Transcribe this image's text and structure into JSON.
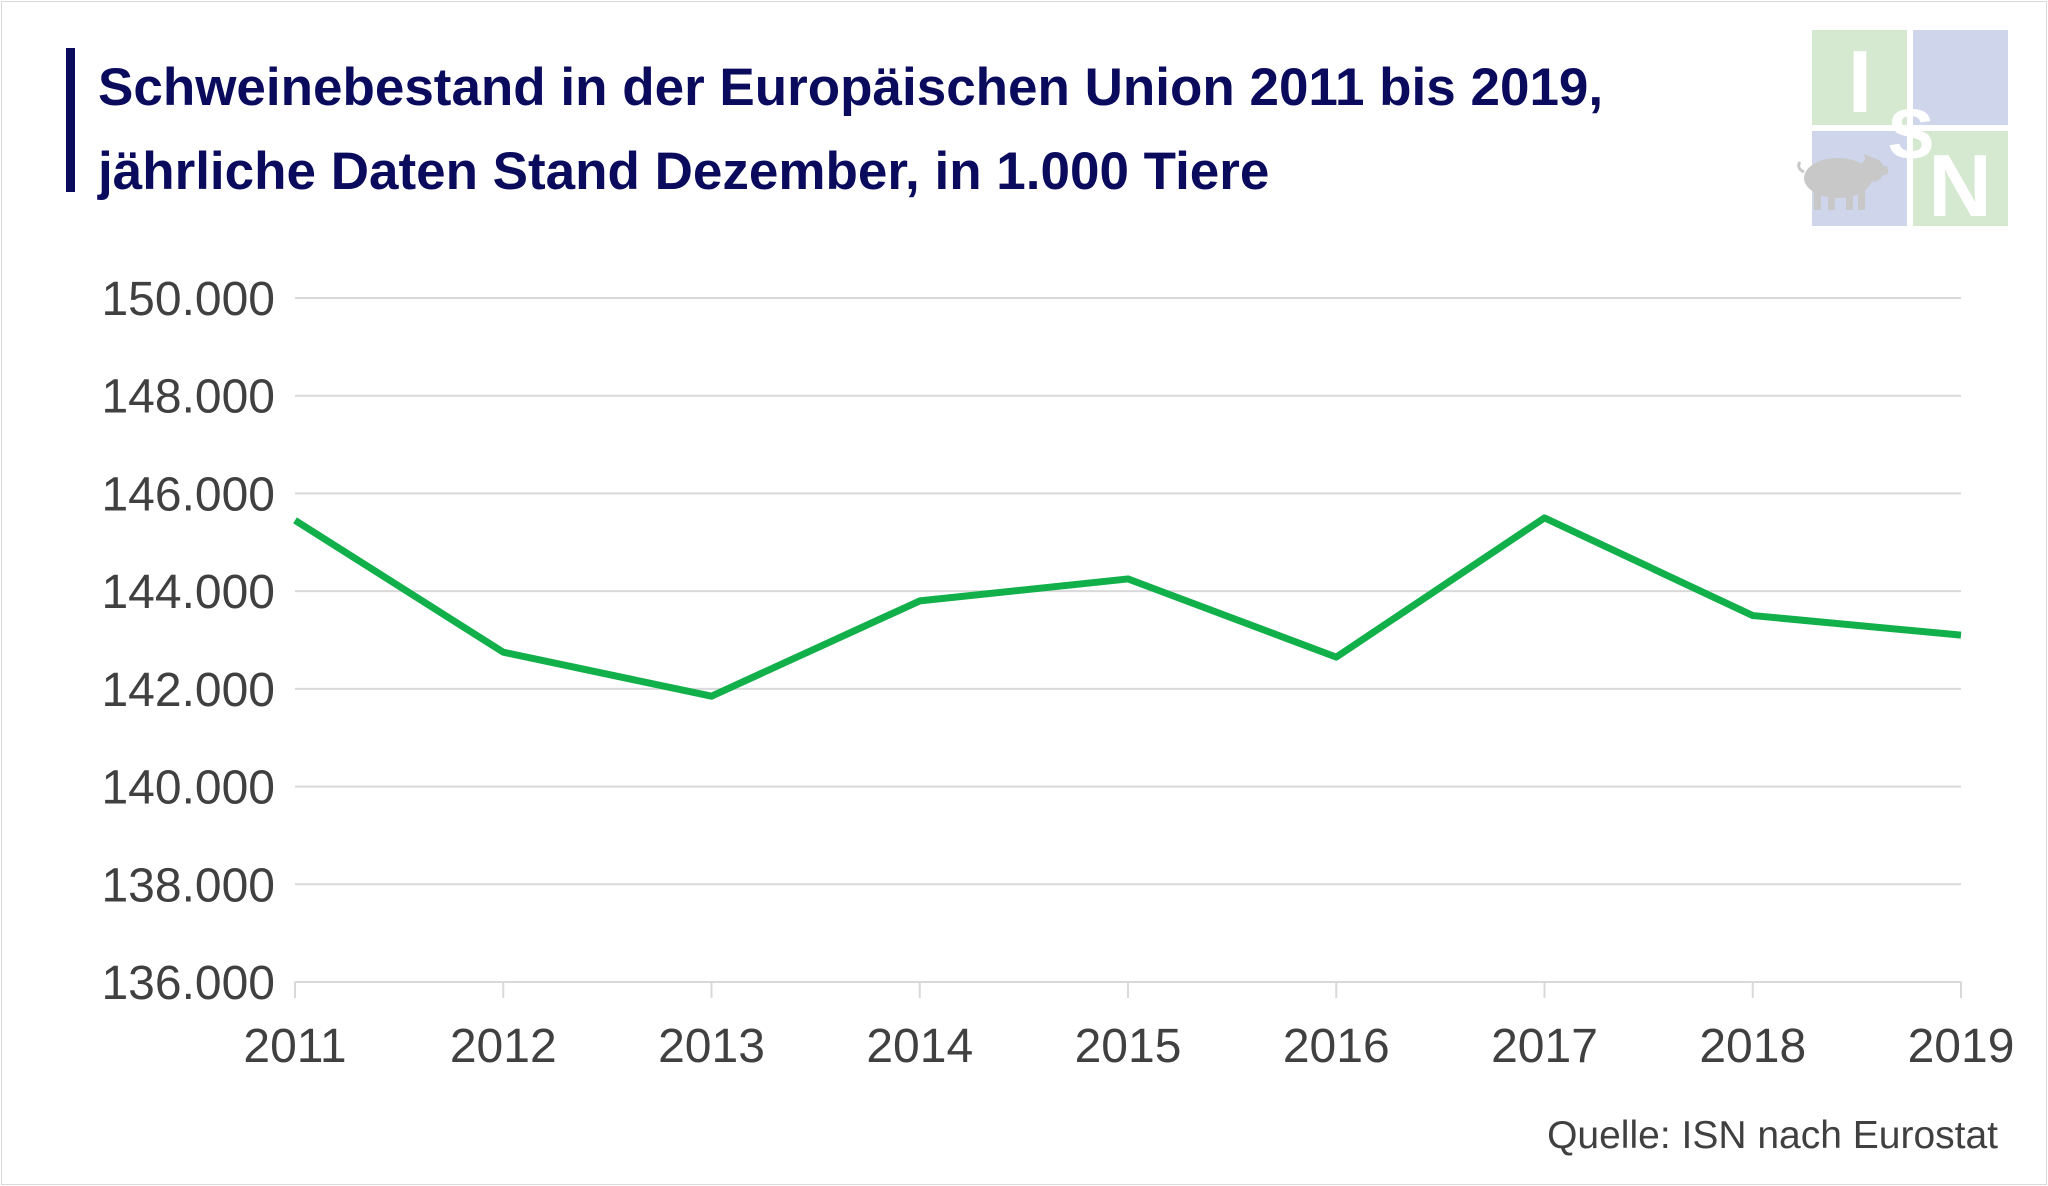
{
  "title": "Schweinebestand in der Europäischen Union 2011 bis 2019, jährliche Daten Stand Dezember, in 1.000 Tiere",
  "source": "Quelle: ISN nach Eurostat",
  "logo": {
    "letters": [
      "I",
      "S",
      "N"
    ],
    "icon": "pig-icon",
    "colors": {
      "green_tile": "#d5e9d1",
      "blue_tile": "#cfd6ec",
      "letter": "#ffffff",
      "pig": "#c8c8c8"
    }
  },
  "colors": {
    "title": "#0b0b5e",
    "line": "#12b04a",
    "grid": "#d9d9d9",
    "axis_text": "#404040"
  },
  "chart_data": {
    "type": "line",
    "title": "Schweinebestand in der Europäischen Union 2011 bis 2019, jährliche Daten Stand Dezember, in 1.000 Tiere",
    "xlabel": "",
    "ylabel": "",
    "categories": [
      "2011",
      "2012",
      "2013",
      "2014",
      "2015",
      "2016",
      "2017",
      "2018",
      "2019"
    ],
    "series": [
      {
        "values": [
          145450,
          142750,
          141850,
          143800,
          144250,
          142650,
          145500,
          143500,
          143100
        ]
      }
    ],
    "ylim": [
      136000,
      150000
    ],
    "yticks": [
      "136.000",
      "138.000",
      "140.000",
      "142.000",
      "144.000",
      "146.000",
      "148.000",
      "150.000"
    ],
    "grid": true,
    "legend": "none"
  }
}
